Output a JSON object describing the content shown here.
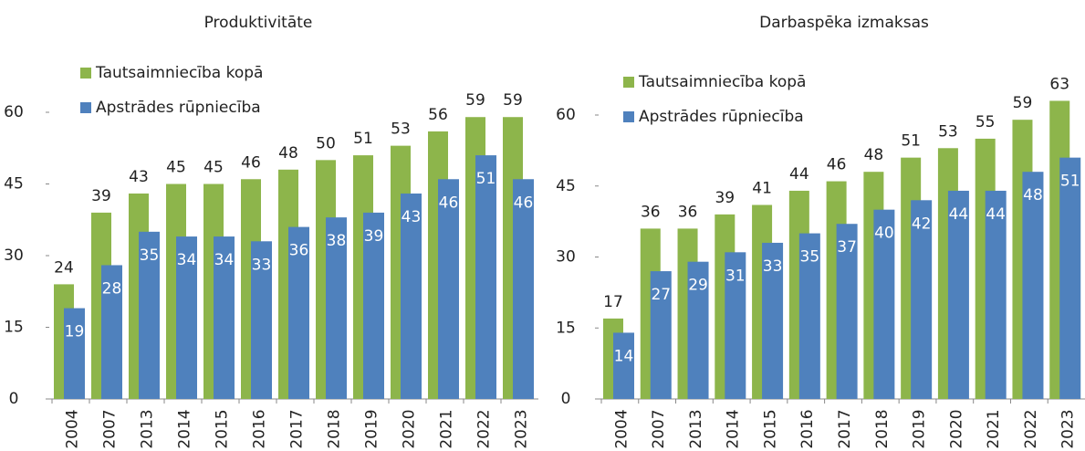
{
  "chart_data": [
    {
      "type": "bar",
      "title": "Produktivitāte",
      "categories": [
        "2004",
        "2007",
        "2013",
        "2014",
        "2015",
        "2016",
        "2017",
        "2018",
        "2019",
        "2020",
        "2021",
        "2022",
        "2023"
      ],
      "series": [
        {
          "name": "Tautsaimniecība kopā",
          "color": "#8db54b",
          "values": [
            24,
            39,
            43,
            45,
            45,
            46,
            48,
            50,
            51,
            53,
            56,
            59,
            59
          ]
        },
        {
          "name": "Apstrādes rūpniecība",
          "color": "#4f81bd",
          "values": [
            19,
            28,
            35,
            34,
            34,
            33,
            36,
            38,
            39,
            43,
            46,
            51,
            46
          ]
        }
      ],
      "ylim": [
        0,
        65
      ],
      "yticks": [
        0,
        15,
        30,
        45,
        60
      ],
      "legend": "top-left"
    },
    {
      "type": "bar",
      "title": "Darbaspēka izmaksas",
      "categories": [
        "2004",
        "2007",
        "2013",
        "2014",
        "2015",
        "2016",
        "2017",
        "2018",
        "2019",
        "2020",
        "2021",
        "2022",
        "2023"
      ],
      "series": [
        {
          "name": "Tautsaimniecība kopā",
          "color": "#8db54b",
          "values": [
            17,
            36,
            36,
            39,
            41,
            44,
            46,
            48,
            51,
            53,
            55,
            59,
            63
          ]
        },
        {
          "name": "Apstrādes rūpniecība",
          "color": "#4f81bd",
          "values": [
            14,
            27,
            29,
            31,
            33,
            35,
            37,
            40,
            42,
            44,
            44,
            48,
            51
          ]
        }
      ],
      "ylim": [
        0,
        65
      ],
      "yticks": [
        0,
        15,
        30,
        45,
        60
      ],
      "legend": "top-left"
    }
  ]
}
